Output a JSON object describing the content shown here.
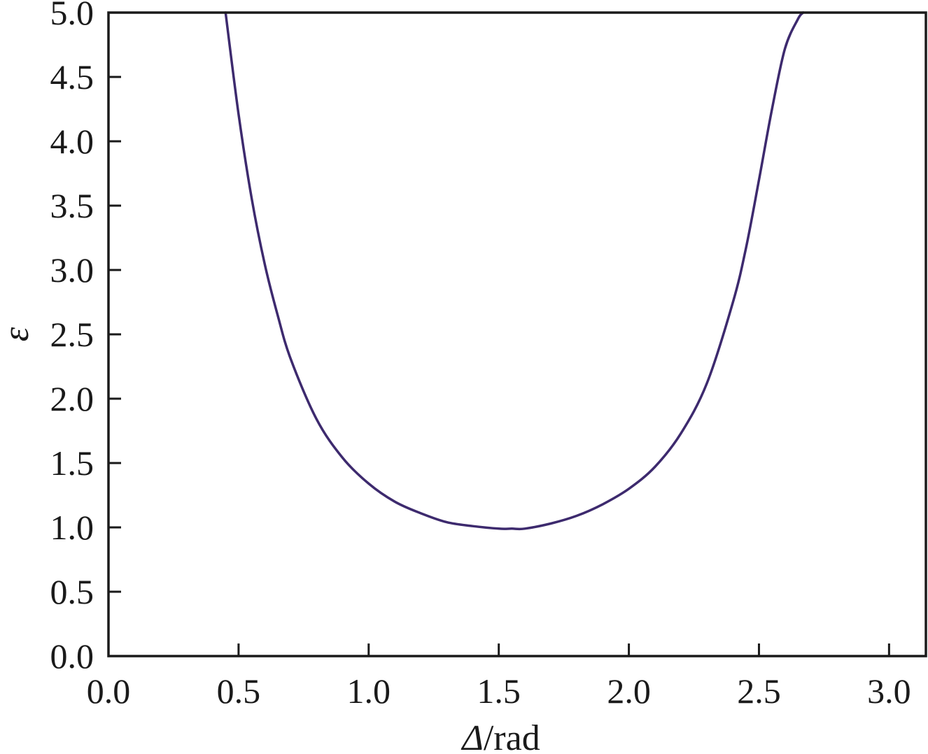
{
  "chart_data": {
    "type": "line",
    "xlabel": "Δ/rad",
    "xlabel_symbol": "Δ",
    "xlabel_unit": "/rad",
    "ylabel": "ε",
    "xlim": [
      0.0,
      3.14159
    ],
    "ylim": [
      0.0,
      5.0
    ],
    "x_ticks": [
      "0.0",
      "0.5",
      "1.0",
      "1.5",
      "2.0",
      "2.5",
      "3.0"
    ],
    "y_ticks": [
      "0.0",
      "0.5",
      "1.0",
      "1.5",
      "2.0",
      "2.5",
      "3.0",
      "3.5",
      "4.0",
      "4.5",
      "5.0"
    ],
    "grid": false,
    "series": [
      {
        "color": "#3d2a6e",
        "x": [
          0.45,
          0.5,
          0.55,
          0.6,
          0.65,
          0.7,
          0.8,
          0.9,
          1.0,
          1.1,
          1.2,
          1.3,
          1.4,
          1.5,
          1.55,
          1.6,
          1.7,
          1.8,
          1.9,
          2.0,
          2.1,
          2.2,
          2.3,
          2.4,
          2.45,
          2.5,
          2.55,
          2.6,
          2.65,
          2.67
        ],
        "y": [
          5.0,
          4.21,
          3.56,
          3.05,
          2.65,
          2.31,
          1.84,
          1.54,
          1.34,
          1.2,
          1.11,
          1.04,
          1.01,
          0.99,
          0.99,
          0.99,
          1.03,
          1.09,
          1.18,
          1.3,
          1.47,
          1.73,
          2.12,
          2.75,
          3.17,
          3.7,
          4.25,
          4.72,
          4.95,
          5.0
        ]
      }
    ]
  }
}
